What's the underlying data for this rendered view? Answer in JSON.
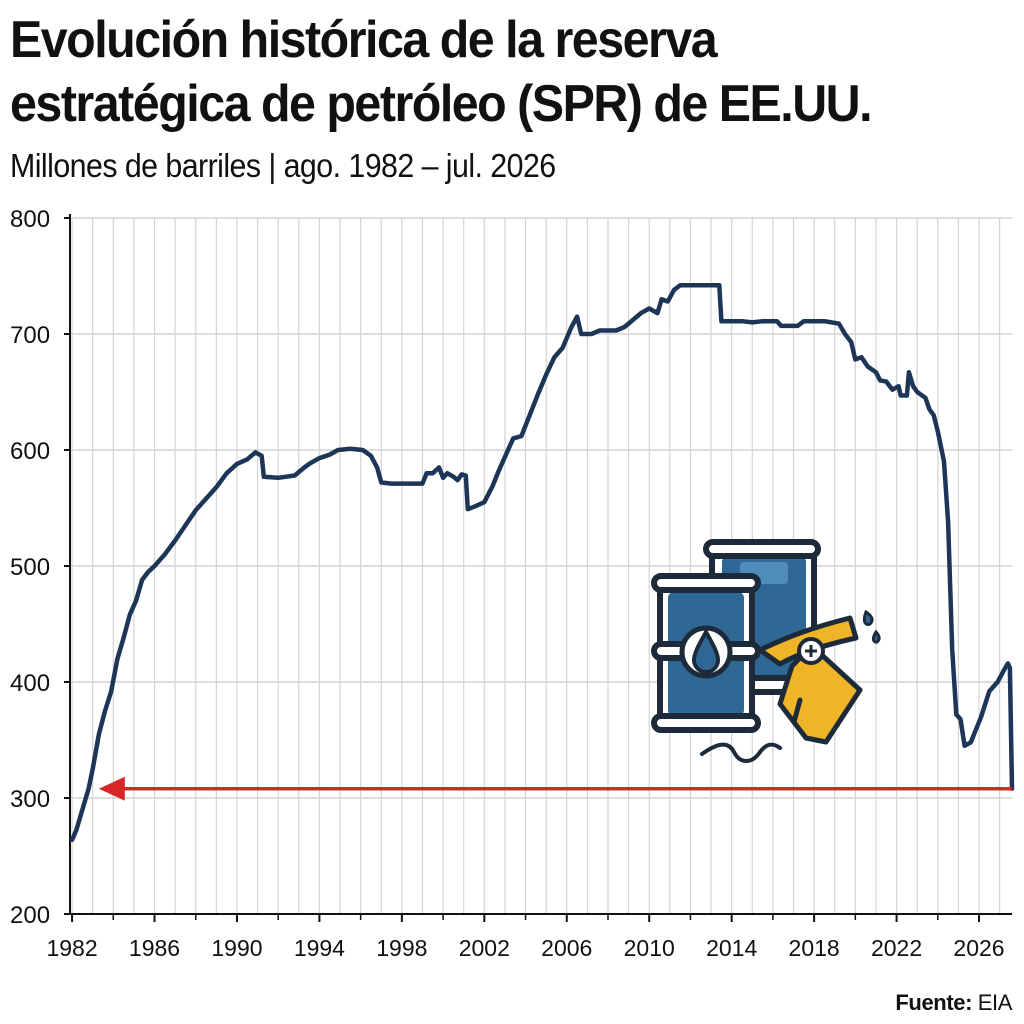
{
  "chart_data": {
    "type": "line",
    "title": "Evolución histórica de la reserva estratégica de petróleo (SPR) de EE.UU.",
    "subtitle": "Millones de barriles | ago. 1982 – jul. 2026",
    "xlabel": "",
    "ylabel": "",
    "xlim": [
      1981.9,
      2027.6
    ],
    "ylim": [
      200,
      800
    ],
    "y_ticks": [
      200,
      300,
      400,
      500,
      600,
      700,
      800
    ],
    "x_ticks": [
      1982,
      1986,
      1990,
      1994,
      1998,
      2002,
      2006,
      2010,
      2014,
      2018,
      2022,
      2026
    ],
    "grid": true,
    "legend": "none",
    "series": [
      {
        "color": "#1d3557",
        "points": [
          [
            1982.0,
            264
          ],
          [
            1982.2,
            272
          ],
          [
            1982.5,
            290
          ],
          [
            1982.8,
            308
          ],
          [
            1983.0,
            325
          ],
          [
            1983.3,
            355
          ],
          [
            1983.6,
            375
          ],
          [
            1983.9,
            392
          ],
          [
            1984.2,
            420
          ],
          [
            1984.5,
            438
          ],
          [
            1984.8,
            458
          ],
          [
            1985.1,
            470
          ],
          [
            1985.4,
            488
          ],
          [
            1985.7,
            495
          ],
          [
            1986.0,
            500
          ],
          [
            1986.5,
            510
          ],
          [
            1987.0,
            522
          ],
          [
            1987.5,
            535
          ],
          [
            1988.0,
            548
          ],
          [
            1988.5,
            558
          ],
          [
            1989.0,
            568
          ],
          [
            1989.5,
            580
          ],
          [
            1990.0,
            588
          ],
          [
            1990.5,
            592
          ],
          [
            1990.9,
            598
          ],
          [
            1991.2,
            595
          ],
          [
            1991.3,
            577
          ],
          [
            1992.0,
            576
          ],
          [
            1992.8,
            578
          ],
          [
            1993.2,
            584
          ],
          [
            1993.5,
            588
          ],
          [
            1994.0,
            593
          ],
          [
            1994.5,
            596
          ],
          [
            1994.9,
            600
          ],
          [
            1995.5,
            601
          ],
          [
            1996.1,
            600
          ],
          [
            1996.5,
            595
          ],
          [
            1996.8,
            585
          ],
          [
            1997.0,
            572
          ],
          [
            1997.5,
            571
          ],
          [
            1998.5,
            571
          ],
          [
            1999.0,
            571
          ],
          [
            1999.2,
            580
          ],
          [
            1999.5,
            580
          ],
          [
            1999.8,
            585
          ],
          [
            2000.0,
            576
          ],
          [
            2000.2,
            580
          ],
          [
            2000.5,
            577
          ],
          [
            2000.7,
            574
          ],
          [
            2000.9,
            579
          ],
          [
            2001.1,
            578
          ],
          [
            2001.2,
            549
          ],
          [
            2001.5,
            551
          ],
          [
            2002.0,
            555
          ],
          [
            2002.4,
            569
          ],
          [
            2002.7,
            582
          ],
          [
            2003.0,
            594
          ],
          [
            2003.4,
            610
          ],
          [
            2003.8,
            612
          ],
          [
            2004.2,
            630
          ],
          [
            2004.6,
            648
          ],
          [
            2005.0,
            665
          ],
          [
            2005.4,
            680
          ],
          [
            2005.8,
            688
          ],
          [
            2006.2,
            705
          ],
          [
            2006.5,
            715
          ],
          [
            2006.7,
            700
          ],
          [
            2007.2,
            700
          ],
          [
            2007.6,
            703
          ],
          [
            2008.4,
            703
          ],
          [
            2008.8,
            706
          ],
          [
            2009.2,
            712
          ],
          [
            2009.6,
            718
          ],
          [
            2010.0,
            722
          ],
          [
            2010.4,
            718
          ],
          [
            2010.6,
            730
          ],
          [
            2010.9,
            728
          ],
          [
            2011.2,
            738
          ],
          [
            2011.5,
            742
          ],
          [
            2012.5,
            742
          ],
          [
            2013.4,
            742
          ],
          [
            2013.5,
            711
          ],
          [
            2014.5,
            711
          ],
          [
            2015.0,
            710
          ],
          [
            2015.5,
            711
          ],
          [
            2016.2,
            711
          ],
          [
            2016.4,
            707
          ],
          [
            2017.2,
            707
          ],
          [
            2017.5,
            711
          ],
          [
            2018.5,
            711
          ],
          [
            2019.2,
            709
          ],
          [
            2019.5,
            700
          ],
          [
            2019.8,
            693
          ],
          [
            2020.0,
            678
          ],
          [
            2020.3,
            680
          ],
          [
            2020.6,
            672
          ],
          [
            2021.0,
            667
          ],
          [
            2021.2,
            660
          ],
          [
            2021.5,
            659
          ],
          [
            2021.8,
            652
          ],
          [
            2022.1,
            655
          ],
          [
            2022.2,
            647
          ],
          [
            2022.5,
            647
          ],
          [
            2022.6,
            667
          ],
          [
            2022.8,
            655
          ],
          [
            2023.0,
            650
          ],
          [
            2023.4,
            645
          ],
          [
            2023.6,
            635
          ],
          [
            2023.8,
            630
          ],
          [
            2024.0,
            616
          ],
          [
            2024.3,
            590
          ],
          [
            2024.5,
            538
          ],
          [
            2024.7,
            428
          ],
          [
            2024.9,
            372
          ],
          [
            2025.1,
            368
          ],
          [
            2025.3,
            345
          ],
          [
            2025.6,
            348
          ],
          [
            2026.1,
            370
          ],
          [
            2026.5,
            392
          ],
          [
            2026.9,
            400
          ],
          [
            2027.2,
            410
          ],
          [
            2027.4,
            416
          ],
          [
            2027.5,
            412
          ],
          [
            2027.6,
            308
          ]
        ]
      }
    ],
    "annotations": [
      {
        "type": "arrow",
        "y": 308,
        "from_x": 2027.6,
        "to_x": 1983.3,
        "color": "#d62828"
      },
      {
        "type": "illustration",
        "x": 2016,
        "y": 505,
        "icon": "oil-barrels-and-fuel-nozzle"
      }
    ]
  },
  "source": {
    "label": "Fuente:",
    "value": "EIA"
  },
  "colors": {
    "line": "#1d3557",
    "arrow": "#d62828",
    "grid": "#d4d4d4",
    "barrel": "#2f6894",
    "nozzle": "#f0b429"
  },
  "icons": [
    "oil-barrel-icon",
    "fuel-nozzle-icon"
  ]
}
